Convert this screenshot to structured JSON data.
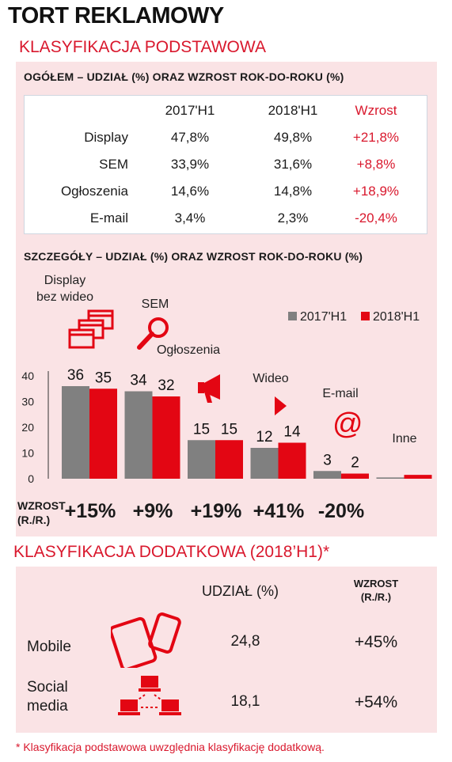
{
  "title": "TORT REKLAMOWY",
  "section1": {
    "title": "KLASYFIKACJA PODSTAWOWA",
    "overview": {
      "subtitle": "OGÓŁEM – UDZIAŁ (%) ORAZ WZROST ROK-DO-ROKU (%)",
      "headers": [
        "2017'H1",
        "2018'H1",
        "Wzrost"
      ],
      "rows": [
        {
          "label": "Display",
          "v2017": "47,8%",
          "v2018": "49,8%",
          "growth": "+21,8%"
        },
        {
          "label": "SEM",
          "v2017": "33,9%",
          "v2018": "31,6%",
          "growth": "+8,8%"
        },
        {
          "label": "Ogłoszenia",
          "v2017": "14,6%",
          "v2018": "14,8%",
          "growth": "+18,9%"
        },
        {
          "label": "E-mail",
          "v2017": "3,4%",
          "v2018": "2,3%",
          "growth": "-20,4%"
        }
      ]
    },
    "details_subtitle": "SZCZEGÓŁY – UDZIAŁ (%) ORAZ WZROST ROK-DO-ROKU (%)",
    "growth_label_line1": "WZROST",
    "growth_label_line2": "(R./R.)"
  },
  "chart_data": {
    "type": "bar",
    "categories": [
      "Display bez wideo",
      "SEM",
      "Ogłoszenia",
      "Wideo",
      "E-mail",
      "Inne"
    ],
    "category_label_lines": [
      [
        "Display",
        "bez wideo"
      ],
      [
        "SEM"
      ],
      [
        "Ogłoszenia"
      ],
      [
        "Wideo"
      ],
      [
        "E-mail"
      ],
      [
        "Inne"
      ]
    ],
    "series": [
      {
        "name": "2017'H1",
        "color": "#808080",
        "values": [
          36,
          34,
          15,
          12,
          3,
          0.5
        ]
      },
      {
        "name": "2018'H1",
        "color": "#e30613",
        "values": [
          35,
          32,
          15,
          14,
          2,
          1.5
        ]
      }
    ],
    "value_labels": [
      [
        "36",
        "35"
      ],
      [
        "34",
        "32"
      ],
      [
        "15",
        "15"
      ],
      [
        "12",
        "14"
      ],
      [
        "3",
        "2"
      ],
      [
        "",
        ""
      ]
    ],
    "growth": [
      "+15%",
      "+9%",
      "+19%",
      "+41%",
      "-20%",
      ""
    ],
    "ylim": [
      0,
      40
    ],
    "yticks": [
      0,
      10,
      20,
      30,
      40
    ],
    "legend_position": "top-right",
    "icons": [
      "windows-icon",
      "magnifier-icon",
      "megaphone-icon",
      "play-icon",
      "at-sign-icon",
      ""
    ]
  },
  "section2": {
    "title": "KLASYFIKACJA DODATKOWA (2018’H1)*",
    "col_share": "UDZIAŁ (%)",
    "col_growth_line1": "WZROST",
    "col_growth_line2": "(R./R.)",
    "rows": [
      {
        "label_lines": [
          "Mobile"
        ],
        "share": "24,8",
        "growth": "+45%",
        "icon": "mobile-devices-icon"
      },
      {
        "label_lines": [
          "Social",
          "media"
        ],
        "share": "18,1",
        "growth": "+54%",
        "icon": "network-computers-icon"
      }
    ]
  },
  "footnote": "* Klasyfikacja podstawowa uwzględnia klasyfikację dodatkową.",
  "colors": {
    "accent": "#d9182d",
    "panel": "#fae3e5",
    "gray_bar": "#808080",
    "red_bar": "#e30613"
  }
}
